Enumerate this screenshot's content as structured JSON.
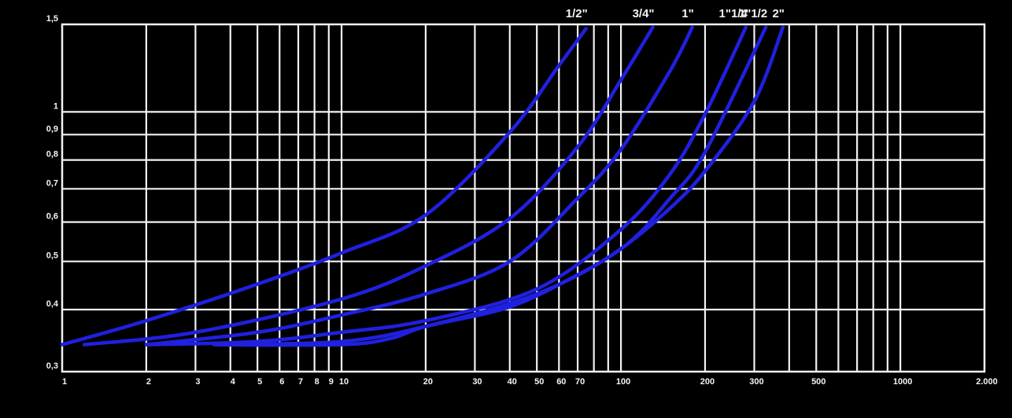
{
  "chart_data": {
    "type": "line",
    "x_scale": "log",
    "y_scale": "log",
    "xlim": [
      1,
      2000
    ],
    "ylim": [
      0.3,
      1.5
    ],
    "grid": true,
    "x_ticks": [
      {
        "value": 1,
        "label": "1"
      },
      {
        "value": 2,
        "label": "2"
      },
      {
        "value": 3,
        "label": "3"
      },
      {
        "value": 4,
        "label": "4"
      },
      {
        "value": 5,
        "label": "5"
      },
      {
        "value": 6,
        "label": "6"
      },
      {
        "value": 7,
        "label": "7"
      },
      {
        "value": 8,
        "label": "8"
      },
      {
        "value": 9,
        "label": "9"
      },
      {
        "value": 10,
        "label": "10"
      },
      {
        "value": 20,
        "label": "20"
      },
      {
        "value": 30,
        "label": "30"
      },
      {
        "value": 40,
        "label": "40"
      },
      {
        "value": 50,
        "label": "50"
      },
      {
        "value": 60,
        "label": "60"
      },
      {
        "value": 70,
        "label": "70"
      },
      {
        "value": 100,
        "label": "100"
      },
      {
        "value": 200,
        "label": "200"
      },
      {
        "value": 300,
        "label": "300"
      },
      {
        "value": 500,
        "label": "500"
      },
      {
        "value": 1000,
        "label": "1000"
      },
      {
        "value": 2000,
        "label": "2.000"
      }
    ],
    "x_gridlines": [
      2,
      3,
      4,
      5,
      6,
      7,
      8,
      9,
      10,
      20,
      30,
      40,
      50,
      60,
      70,
      80,
      90,
      100,
      200,
      300,
      400,
      500,
      600,
      700,
      800,
      900,
      1000
    ],
    "y_ticks": [
      {
        "value": 0.3,
        "label": "0,3"
      },
      {
        "value": 0.4,
        "label": "0,4"
      },
      {
        "value": 0.5,
        "label": "0,5"
      },
      {
        "value": 0.6,
        "label": "0,6"
      },
      {
        "value": 0.7,
        "label": "0,7"
      },
      {
        "value": 0.8,
        "label": "0,8"
      },
      {
        "value": 0.9,
        "label": "0,9"
      },
      {
        "value": 1,
        "label": "1"
      },
      {
        "value": 1.5,
        "label": "1,5"
      }
    ],
    "y_gridlines": [
      0.4,
      0.5,
      0.6,
      0.7,
      0.8,
      0.9,
      1
    ],
    "line_color": "#2020e0",
    "series": [
      {
        "name": "1/2\"",
        "x": [
          1,
          2,
          5,
          10,
          20,
          40,
          60,
          75
        ],
        "y": [
          0.34,
          0.38,
          0.45,
          0.52,
          0.62,
          0.91,
          1.24,
          1.47
        ]
      },
      {
        "name": "3/4\"",
        "x": [
          1.2,
          3,
          10,
          20,
          40,
          70,
          100,
          130
        ],
        "y": [
          0.34,
          0.36,
          0.42,
          0.49,
          0.61,
          0.85,
          1.16,
          1.48
        ]
      },
      {
        "name": "1\"",
        "x": [
          2,
          5,
          10,
          20,
          40,
          70,
          100,
          150,
          180
        ],
        "y": [
          0.34,
          0.36,
          0.39,
          0.43,
          0.5,
          0.67,
          0.84,
          1.21,
          1.48
        ]
      },
      {
        "name": "1\"1/4",
        "x": [
          2,
          5,
          10,
          20,
          50,
          100,
          150,
          200,
          280
        ],
        "y": [
          0.34,
          0.345,
          0.36,
          0.38,
          0.44,
          0.58,
          0.75,
          0.99,
          1.48
        ]
      },
      {
        "name": "1\"1/2",
        "x": [
          3.5,
          10,
          20,
          50,
          100,
          150,
          200,
          330
        ],
        "y": [
          0.34,
          0.345,
          0.37,
          0.43,
          0.53,
          0.67,
          0.83,
          1.48
        ]
      },
      {
        "name": "2\"",
        "x": [
          3.5,
          10,
          15,
          20,
          40,
          70,
          100,
          150,
          200,
          300,
          380
        ],
        "y": [
          0.34,
          0.34,
          0.35,
          0.37,
          0.405,
          0.47,
          0.53,
          0.64,
          0.76,
          1.05,
          1.48
        ]
      }
    ]
  }
}
